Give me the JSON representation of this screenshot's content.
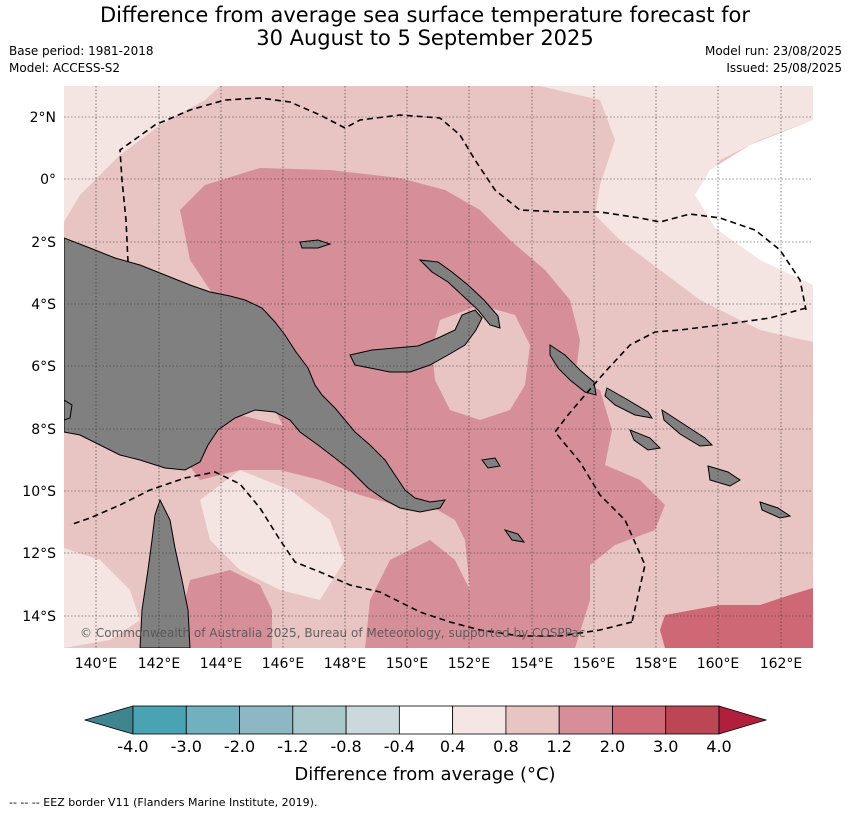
{
  "title": {
    "line1": "Difference from average sea surface temperature forecast for",
    "line2": "30 August to 5 September 2025"
  },
  "meta_left": {
    "base_period": "Base period: 1981-2018",
    "model": "Model: ACCESS-S2"
  },
  "meta_right": {
    "model_run": "Model run: 23/08/2025",
    "issued": "Issued: 25/08/2025"
  },
  "map": {
    "lat_labels": [
      "2°N",
      "0°",
      "2°S",
      "4°S",
      "6°S",
      "8°S",
      "10°S",
      "12°S",
      "14°S"
    ],
    "lon_labels": [
      "140°E",
      "142°E",
      "144°E",
      "146°E",
      "148°E",
      "150°E",
      "152°E",
      "154°E",
      "156°E",
      "158°E",
      "160°E",
      "162°E"
    ],
    "copyright": "© Commonwealth of Australia 2025, Bureau of Meteorology, supported by COSPPac",
    "land_color": "#808080",
    "colors": {
      "lt_04": "#f4e4e2",
      "lt_08": "#e8c4c2",
      "lt_12": "#d68f98",
      "lt_20": "#cd6874"
    }
  },
  "colorbar": {
    "boundaries": [
      "-4.0",
      "-3.0",
      "-2.0",
      "-1.2",
      "-0.8",
      "-0.4",
      "0.4",
      "0.8",
      "1.2",
      "2.0",
      "3.0",
      "4.0"
    ],
    "colors": [
      "#4aa3b3",
      "#70b0bf",
      "#8db7c2",
      "#a9c8cc",
      "#ccd9dc",
      "#ffffff",
      "#f5e5e4",
      "#e8c4c2",
      "#d68f98",
      "#cd6874",
      "#bd4655"
    ],
    "extend_low_color": "#3e8590",
    "extend_high_color": "#b0203c",
    "label": "Difference from average (°C)"
  },
  "footer": "-- -- -- EEZ border V11 (Flanders Marine Institute, 2019)."
}
